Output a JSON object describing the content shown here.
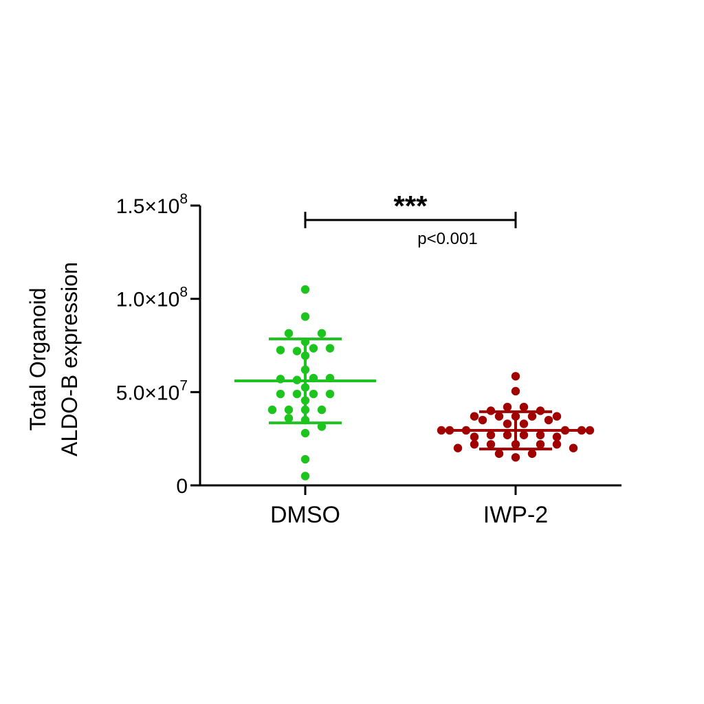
{
  "chart_data": {
    "type": "scatter",
    "ylabel_lines": [
      "Total Organoid",
      "ALDO-B expression"
    ],
    "ylim": [
      0,
      150000000
    ],
    "yticks": [
      {
        "value": 0,
        "mantissa": "0",
        "exp": ""
      },
      {
        "value": 50000000,
        "mantissa": "5.0×10",
        "exp": "7"
      },
      {
        "value": 100000000,
        "mantissa": "1.0×10",
        "exp": "8"
      },
      {
        "value": 150000000,
        "mantissa": "1.5×10",
        "exp": "8"
      }
    ],
    "categories": [
      "DMSO",
      "IWP-2"
    ],
    "series": [
      {
        "category": "DMSO",
        "color": "#1ec41e",
        "mean": 56000000,
        "sd_upper": 78500000,
        "sd_lower": 33500000,
        "points": [
          {
            "v": 105000000,
            "j": 0
          },
          {
            "v": 90500000,
            "j": 0
          },
          {
            "v": 81500000,
            "j": -2
          },
          {
            "v": 81500000,
            "j": 2
          },
          {
            "v": 77000000,
            "j": 0
          },
          {
            "v": 73500000,
            "j": 1
          },
          {
            "v": 73500000,
            "j": 3
          },
          {
            "v": 72500000,
            "j": -3
          },
          {
            "v": 72000000,
            "j": -1
          },
          {
            "v": 69500000,
            "j": 0
          },
          {
            "v": 62000000,
            "j": 0
          },
          {
            "v": 57500000,
            "j": 1
          },
          {
            "v": 57500000,
            "j": 3
          },
          {
            "v": 57000000,
            "j": -3
          },
          {
            "v": 56500000,
            "j": -1
          },
          {
            "v": 52500000,
            "j": 0
          },
          {
            "v": 49000000,
            "j": -3
          },
          {
            "v": 49000000,
            "j": -1
          },
          {
            "v": 49000000,
            "j": 1
          },
          {
            "v": 49000000,
            "j": 3
          },
          {
            "v": 45500000,
            "j": 0
          },
          {
            "v": 40500000,
            "j": -4
          },
          {
            "v": 40500000,
            "j": -2
          },
          {
            "v": 40500000,
            "j": 0
          },
          {
            "v": 40500000,
            "j": 2
          },
          {
            "v": 36000000,
            "j": -2
          },
          {
            "v": 35000000,
            "j": 0
          },
          {
            "v": 31500000,
            "j": 2
          },
          {
            "v": 28000000,
            "j": 0
          },
          {
            "v": 14000000,
            "j": 0
          },
          {
            "v": 5000000,
            "j": 0
          }
        ]
      },
      {
        "category": "IWP-2",
        "color": "#a00000",
        "mean": 29500000,
        "sd_upper": 39500000,
        "sd_lower": 19500000,
        "points": [
          {
            "v": 58500000,
            "j": 0
          },
          {
            "v": 50500000,
            "j": 0
          },
          {
            "v": 42000000,
            "j": -1
          },
          {
            "v": 42000000,
            "j": 1
          },
          {
            "v": 40000000,
            "j": -3
          },
          {
            "v": 40000000,
            "j": 3
          },
          {
            "v": 37000000,
            "j": -5
          },
          {
            "v": 37000000,
            "j": -2
          },
          {
            "v": 37000000,
            "j": 0
          },
          {
            "v": 37000000,
            "j": 2
          },
          {
            "v": 37000000,
            "j": 5
          },
          {
            "v": 35000000,
            "j": -4
          },
          {
            "v": 35000000,
            "j": 4
          },
          {
            "v": 33000000,
            "j": -1
          },
          {
            "v": 33000000,
            "j": 1
          },
          {
            "v": 29500000,
            "j": -9
          },
          {
            "v": 29500000,
            "j": -8
          },
          {
            "v": 29500000,
            "j": -6
          },
          {
            "v": 29500000,
            "j": 6
          },
          {
            "v": 29500000,
            "j": 8
          },
          {
            "v": 29500000,
            "j": 9
          },
          {
            "v": 27000000,
            "j": -3
          },
          {
            "v": 27000000,
            "j": -1
          },
          {
            "v": 27000000,
            "j": 1
          },
          {
            "v": 27000000,
            "j": 3
          },
          {
            "v": 26000000,
            "j": -5
          },
          {
            "v": 26000000,
            "j": 5
          },
          {
            "v": 22000000,
            "j": -5
          },
          {
            "v": 22000000,
            "j": -3
          },
          {
            "v": 22000000,
            "j": 0
          },
          {
            "v": 22000000,
            "j": 3
          },
          {
            "v": 22000000,
            "j": 5
          },
          {
            "v": 20000000,
            "j": -7
          },
          {
            "v": 20000000,
            "j": 7
          },
          {
            "v": 17000000,
            "j": -2
          },
          {
            "v": 17000000,
            "j": 2
          },
          {
            "v": 15000000,
            "j": 0
          }
        ]
      }
    ],
    "annotation": {
      "stars": "***",
      "p_value": "p<0.001",
      "bracket_from": "DMSO",
      "bracket_to": "IWP-2"
    }
  }
}
